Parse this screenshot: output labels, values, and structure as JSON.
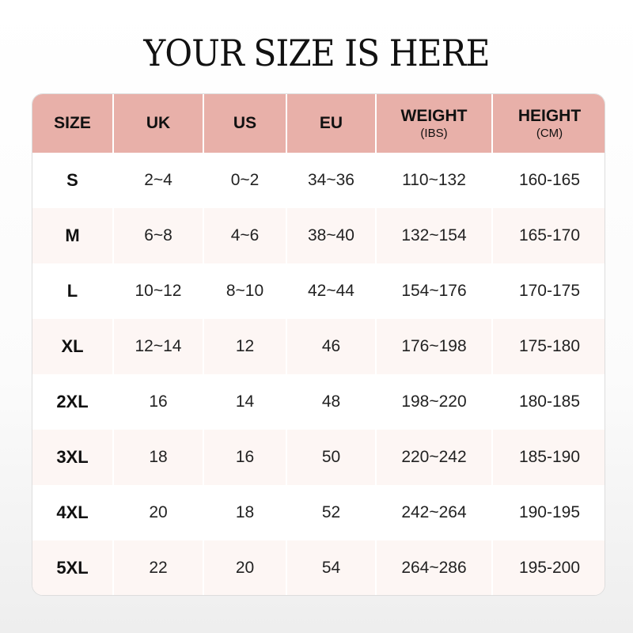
{
  "title": "YOUR SIZE IS HERE",
  "colors": {
    "header": "#e8b0a9",
    "alt_row": "#fdf6f4"
  },
  "columns": [
    {
      "label": "SIZE",
      "sub": ""
    },
    {
      "label": "UK",
      "sub": ""
    },
    {
      "label": "US",
      "sub": ""
    },
    {
      "label": "EU",
      "sub": ""
    },
    {
      "label": "WEIGHT",
      "sub": "(IBS)"
    },
    {
      "label": "HEIGHT",
      "sub": "(CM)"
    }
  ],
  "rows": [
    [
      "S",
      "2~4",
      "0~2",
      "34~36",
      "110~132",
      "160-165"
    ],
    [
      "M",
      "6~8",
      "4~6",
      "38~40",
      "132~154",
      "165-170"
    ],
    [
      "L",
      "10~12",
      "8~10",
      "42~44",
      "154~176",
      "170-175"
    ],
    [
      "XL",
      "12~14",
      "12",
      "46",
      "176~198",
      "175-180"
    ],
    [
      "2XL",
      "16",
      "14",
      "48",
      "198~220",
      "180-185"
    ],
    [
      "3XL",
      "18",
      "16",
      "50",
      "220~242",
      "185-190"
    ],
    [
      "4XL",
      "20",
      "18",
      "52",
      "242~264",
      "190-195"
    ],
    [
      "5XL",
      "22",
      "20",
      "54",
      "264~286",
      "195-200"
    ]
  ]
}
